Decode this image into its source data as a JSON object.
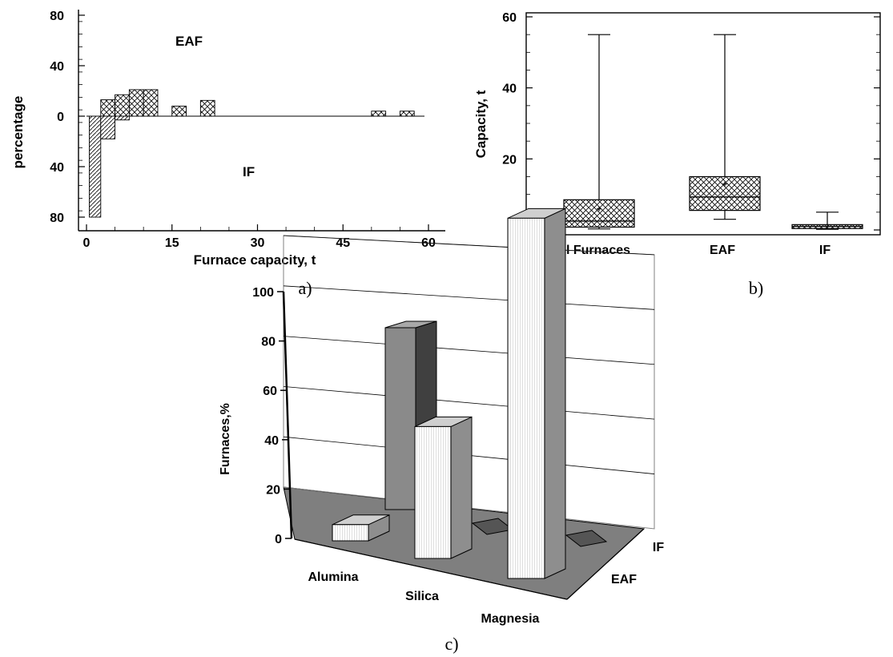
{
  "chart_data": [
    {
      "type": "bar",
      "caption": "a)",
      "xlabel": "Furnace capacity, t",
      "ylabel": "percentage",
      "xlim": [
        0,
        60
      ],
      "xticks": [
        "0",
        "15",
        "30",
        "45",
        "60"
      ],
      "yticks_upper": [
        "80",
        "40",
        "0"
      ],
      "yticks_lower": [
        "40",
        "80"
      ],
      "ylim_upper": [
        0,
        80
      ],
      "ylim_lower": [
        0,
        80
      ],
      "annotations": {
        "upper": "EAF",
        "lower": "IF"
      },
      "series": [
        {
          "name": "EAF",
          "direction": "up",
          "bins": [
            [
              2.5,
              5,
              13
            ],
            [
              5,
              7.5,
              17
            ],
            [
              7.5,
              10,
              21
            ],
            [
              10,
              12.5,
              21
            ],
            [
              15,
              17.5,
              8
            ],
            [
              20,
              22.5,
              12.5
            ],
            [
              50,
              52.5,
              4
            ],
            [
              55,
              57.5,
              4
            ]
          ]
        },
        {
          "name": "IF",
          "direction": "down",
          "bins": [
            [
              0.5,
              2.5,
              80
            ],
            [
              2.5,
              5,
              18
            ],
            [
              5,
              7.5,
              3
            ]
          ]
        }
      ]
    },
    {
      "type": "box",
      "caption": "b)",
      "ylabel": "Capacity, t",
      "ylim": [
        0,
        60
      ],
      "yticks": [
        "0",
        "20",
        "40",
        "60"
      ],
      "categories": [
        "All Furnaces",
        "EAF",
        "IF"
      ],
      "boxes": [
        {
          "min": 0.3,
          "q1": 0.8,
          "median": 2.5,
          "q3": 8.5,
          "max": 55,
          "mean": 6
        },
        {
          "min": 3,
          "q1": 5.5,
          "median": 9.3,
          "q3": 15,
          "max": 55,
          "mean": 13
        },
        {
          "min": 0.2,
          "q1": 0.4,
          "median": 1.0,
          "q3": 1.5,
          "max": 5,
          "mean": 1.0
        }
      ]
    },
    {
      "type": "bar3d",
      "caption": "c)",
      "ylabel": "Furnaces,%",
      "ylim": [
        0,
        100
      ],
      "yticks": [
        "0",
        "20",
        "40",
        "60",
        "80",
        "100"
      ],
      "categories": [
        "Alumina",
        "Silica",
        "Magnesia"
      ],
      "series": [
        {
          "name": "EAF",
          "values": [
            5,
            40,
            90
          ]
        },
        {
          "name": "IF",
          "values": [
            0,
            0,
            0
          ]
        }
      ]
    }
  ]
}
